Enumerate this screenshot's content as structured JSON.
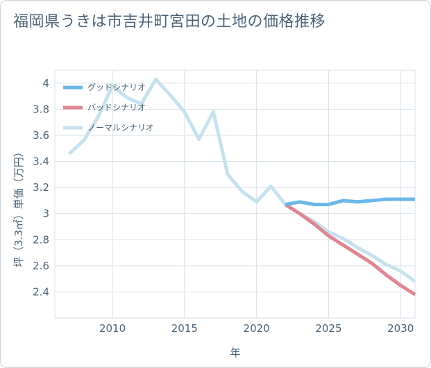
{
  "chart_data": {
    "type": "line",
    "title": "福岡県うきは市吉井町宮田の土地の価格推移",
    "xlabel": "年",
    "ylabel": "坪（3.3㎡）単価（万円）",
    "xlim": [
      2006,
      2031
    ],
    "ylim": [
      2.2,
      4.1
    ],
    "xticks": [
      2010,
      2015,
      2020,
      2025,
      2030
    ],
    "yticks": [
      2.4,
      2.6,
      2.8,
      3,
      3.2,
      3.4,
      3.6,
      3.8,
      4
    ],
    "xtick_labels": [
      "2010",
      "2015",
      "2020",
      "2025",
      "2030"
    ],
    "ytick_labels": [
      "2.4",
      "2.6",
      "2.8",
      "3",
      "3.2",
      "3.4",
      "3.6",
      "3.8",
      "4"
    ],
    "legend_position": "top-left",
    "series": [
      {
        "name": "グッドシナリオ",
        "color": "#6bb7ea",
        "x": [
          2022,
          2023,
          2024,
          2025,
          2026,
          2027,
          2028,
          2029,
          2030,
          2031
        ],
        "values": [
          3.07,
          3.09,
          3.07,
          3.07,
          3.1,
          3.09,
          3.1,
          3.11,
          3.11,
          3.11
        ]
      },
      {
        "name": "バッドシナリオ",
        "color": "#de8590",
        "x": [
          2022,
          2023,
          2024,
          2025,
          2026,
          2027,
          2028,
          2029,
          2030,
          2031
        ],
        "values": [
          3.07,
          3.0,
          2.92,
          2.83,
          2.76,
          2.69,
          2.62,
          2.53,
          2.45,
          2.38
        ]
      },
      {
        "name": "ノーマルシナリオ",
        "color": "#c5e1ee",
        "x": [
          2007,
          2008,
          2009,
          2010,
          2011,
          2012,
          2013,
          2014,
          2015,
          2016,
          2017,
          2018,
          2019,
          2020,
          2021,
          2022,
          2023,
          2024,
          2025,
          2026,
          2027,
          2028,
          2029,
          2030,
          2031
        ],
        "values": [
          3.46,
          3.56,
          3.74,
          3.98,
          3.89,
          3.84,
          4.03,
          3.91,
          3.78,
          3.57,
          3.78,
          3.3,
          3.17,
          3.09,
          3.21,
          3.07,
          3.0,
          2.94,
          2.86,
          2.81,
          2.74,
          2.68,
          2.61,
          2.56,
          2.48
        ]
      }
    ]
  }
}
